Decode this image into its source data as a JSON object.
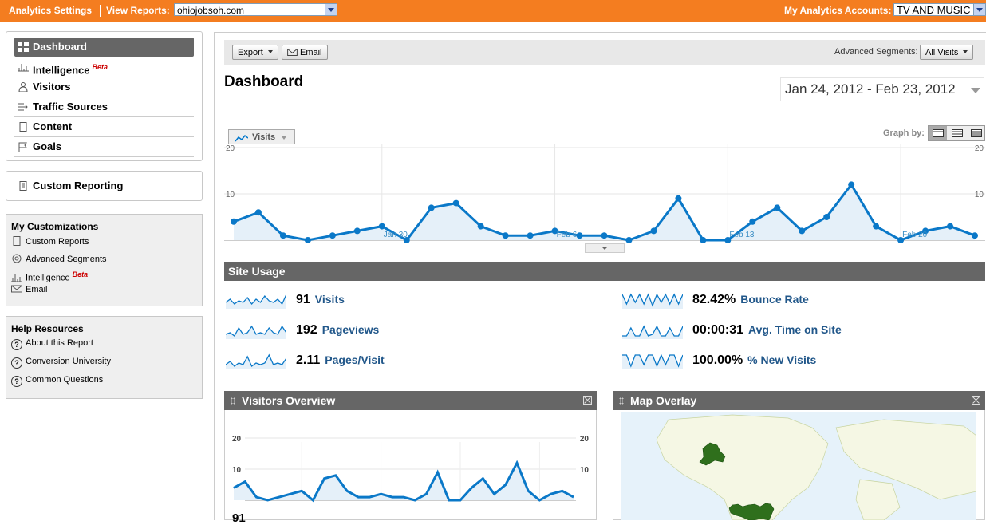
{
  "topbar": {
    "analytics_settings": "Analytics Settings",
    "view_reports_label": "View Reports:",
    "view_reports_value": "ohiojobsoh.com",
    "accounts_label": "My Analytics Accounts:",
    "accounts_value": "TV AND MUSIC"
  },
  "sidebar": {
    "nav": [
      {
        "label": "Dashboard",
        "icon": "dashboard-icon"
      },
      {
        "label": "Intelligence",
        "badge": "Beta",
        "icon": "intelligence-icon"
      },
      {
        "label": "Visitors",
        "icon": "visitors-icon"
      },
      {
        "label": "Traffic Sources",
        "icon": "traffic-sources-icon"
      },
      {
        "label": "Content",
        "icon": "content-icon"
      },
      {
        "label": "Goals",
        "icon": "goals-flag-icon"
      }
    ],
    "custom_reporting": "Custom Reporting",
    "customizations": {
      "title": "My Customizations",
      "items": [
        {
          "label": "Custom Reports"
        },
        {
          "label": "Advanced Segments"
        },
        {
          "label": "Intelligence",
          "badge": "Beta"
        },
        {
          "label": "Email"
        }
      ]
    },
    "help": {
      "title": "Help Resources",
      "items": [
        {
          "label": "About this Report"
        },
        {
          "label": "Conversion University"
        },
        {
          "label": "Common Questions"
        }
      ]
    }
  },
  "toolbar": {
    "export_label": "Export",
    "email_label": "Email",
    "segments_label": "Advanced Segments:",
    "segments_value": "All Visits"
  },
  "page": {
    "title": "Dashboard",
    "date_range": "Jan 24, 2012 - Feb 23, 2012",
    "metric_tab": "Visits",
    "graph_by_label": "Graph by:"
  },
  "chart_data": {
    "type": "area",
    "series": [
      {
        "values": [
          4,
          6,
          1,
          0,
          1,
          2,
          3,
          0,
          7,
          8,
          3,
          1,
          1,
          2,
          1,
          1,
          0,
          2,
          9,
          0,
          0,
          4,
          7,
          2,
          5,
          12,
          3,
          0,
          2,
          3,
          1
        ]
      }
    ],
    "x_tick_labels": [
      "Jan 30",
      "Feb 6",
      "Feb 13",
      "Feb 20"
    ],
    "ylim": [
      0,
      20
    ],
    "y_tick_labels": [
      "20",
      "10"
    ]
  },
  "site_usage": {
    "title": "Site Usage",
    "metrics": [
      {
        "value": "91",
        "label": "Visits"
      },
      {
        "value": "192",
        "label": "Pageviews"
      },
      {
        "value": "2.11",
        "label": "Pages/Visit"
      },
      {
        "value": "82.42%",
        "label": "Bounce Rate"
      },
      {
        "value": "00:00:31",
        "label": "Avg. Time on Site"
      },
      {
        "value": "100.00%",
        "label": "% New Visits"
      }
    ]
  },
  "visitors_overview": {
    "title": "Visitors Overview",
    "y_tick_labels": [
      "20",
      "10"
    ],
    "footer_value": "91"
  },
  "map_overlay": {
    "title": "Map Overlay"
  },
  "colors": {
    "accent": "#f47d20",
    "line": "#0077cc",
    "link": "#21578a"
  }
}
